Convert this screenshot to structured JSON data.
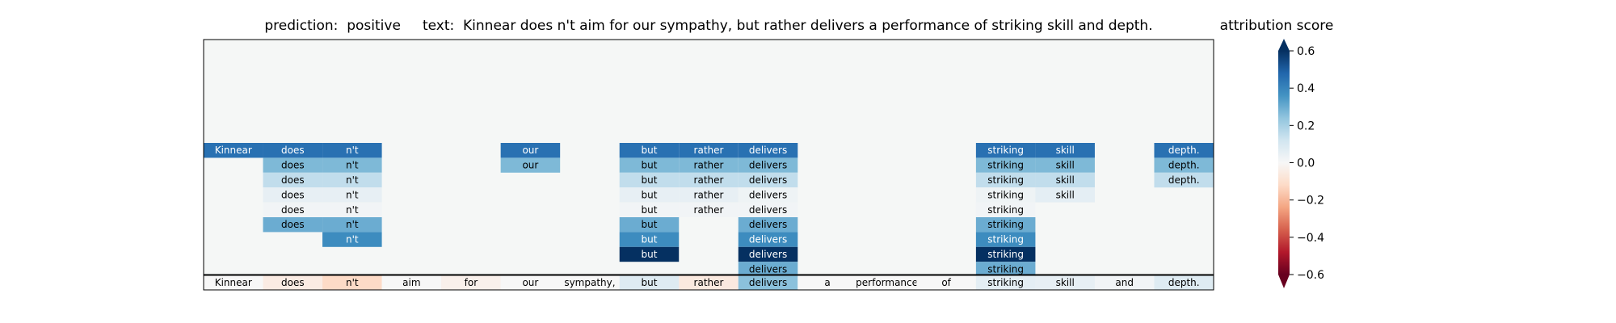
{
  "title": {
    "prediction_text": "prediction:  positive",
    "text_text": "text:  Kinnear does n't aim for our sympathy, but rather delivers a performance of striking skill and depth."
  },
  "colorbar": {
    "title": "attribution score",
    "ticks": [
      "0.6",
      "0.4",
      "0.2",
      "0.0",
      "−0.2",
      "−0.4",
      "−0.6"
    ],
    "tick_values": [
      0.6,
      0.4,
      0.2,
      0.0,
      -0.2,
      -0.4,
      -0.6
    ],
    "range": [
      -0.6,
      0.6
    ],
    "colormap": "RdBu"
  },
  "chart_data": {
    "type": "heatmap",
    "tokens": [
      "Kinnear",
      "does",
      "n't",
      "aim",
      "for",
      "our",
      "sympathy,",
      "but",
      "rather",
      "delivers",
      "a",
      "performance",
      "of",
      "striking",
      "skill",
      "and",
      "depth."
    ],
    "bottom_row_scores": [
      0.0,
      -0.05,
      -0.12,
      0.0,
      -0.03,
      0.0,
      0.0,
      0.08,
      -0.06,
      0.25,
      0.0,
      0.0,
      0.0,
      0.06,
      0.05,
      0.02,
      0.08
    ],
    "hierarchy_rows": [
      {
        "segments": [
          {
            "start": 0,
            "end": 0,
            "score": 0.45
          },
          {
            "start": 1,
            "end": 1,
            "score": 0.45
          },
          {
            "start": 2,
            "end": 2,
            "score": 0.45
          },
          {
            "start": 5,
            "end": 5,
            "score": 0.45
          },
          {
            "start": 7,
            "end": 7,
            "score": 0.45
          },
          {
            "start": 8,
            "end": 8,
            "score": 0.45
          },
          {
            "start": 9,
            "end": 9,
            "score": 0.45
          },
          {
            "start": 13,
            "end": 13,
            "score": 0.45
          },
          {
            "start": 14,
            "end": 14,
            "score": 0.45
          },
          {
            "start": 16,
            "end": 16,
            "score": 0.45
          }
        ]
      },
      {
        "segments": [
          {
            "start": 1,
            "end": 1,
            "score": 0.27
          },
          {
            "start": 2,
            "end": 2,
            "score": 0.27
          },
          {
            "start": 5,
            "end": 5,
            "score": 0.27
          },
          {
            "start": 7,
            "end": 7,
            "score": 0.27
          },
          {
            "start": 8,
            "end": 8,
            "score": 0.27
          },
          {
            "start": 9,
            "end": 9,
            "score": 0.27
          },
          {
            "start": 13,
            "end": 13,
            "score": 0.27
          },
          {
            "start": 14,
            "end": 14,
            "score": 0.27
          },
          {
            "start": 16,
            "end": 16,
            "score": 0.27
          }
        ]
      },
      {
        "segments": [
          {
            "start": 1,
            "end": 1,
            "score": 0.15
          },
          {
            "start": 2,
            "end": 2,
            "score": 0.15
          },
          {
            "start": 7,
            "end": 7,
            "score": 0.15
          },
          {
            "start": 8,
            "end": 8,
            "score": 0.15
          },
          {
            "start": 9,
            "end": 9,
            "score": 0.15
          },
          {
            "start": 13,
            "end": 13,
            "score": 0.15
          },
          {
            "start": 14,
            "end": 14,
            "score": 0.15
          },
          {
            "start": 16,
            "end": 16,
            "score": 0.15
          }
        ]
      },
      {
        "segments": [
          {
            "start": 1,
            "end": 1,
            "score": 0.05
          },
          {
            "start": 2,
            "end": 2,
            "score": 0.05
          },
          {
            "start": 7,
            "end": 7,
            "score": 0.05
          },
          {
            "start": 8,
            "end": 8,
            "score": 0.05
          },
          {
            "start": 9,
            "end": 9,
            "score": 0.03
          },
          {
            "start": 13,
            "end": 13,
            "score": 0.03
          },
          {
            "start": 14,
            "end": 14,
            "score": 0.06
          }
        ]
      },
      {
        "segments": [
          {
            "start": 1,
            "end": 1,
            "score": 0.02
          },
          {
            "start": 2,
            "end": 2,
            "score": 0.02
          },
          {
            "start": 7,
            "end": 7,
            "score": 0.02
          },
          {
            "start": 8,
            "end": 8,
            "score": 0.02
          },
          {
            "start": 9,
            "end": 9,
            "score": 0.02
          },
          {
            "start": 13,
            "end": 13,
            "score": 0.02
          }
        ]
      },
      {
        "segments": [
          {
            "start": 1,
            "end": 1,
            "score": 0.3
          },
          {
            "start": 2,
            "end": 2,
            "score": 0.3
          },
          {
            "start": 7,
            "end": 7,
            "score": 0.3
          },
          {
            "start": 9,
            "end": 9,
            "score": 0.3
          },
          {
            "start": 13,
            "end": 13,
            "score": 0.3
          }
        ]
      },
      {
        "segments": [
          {
            "start": 2,
            "end": 2,
            "score": 0.38
          },
          {
            "start": 7,
            "end": 7,
            "score": 0.38
          },
          {
            "start": 9,
            "end": 9,
            "score": 0.38
          },
          {
            "start": 13,
            "end": 13,
            "score": 0.38
          }
        ]
      },
      {
        "segments": [
          {
            "start": 7,
            "end": 7,
            "score": 0.62
          },
          {
            "start": 9,
            "end": 9,
            "score": 0.62
          },
          {
            "start": 13,
            "end": 13,
            "score": 0.62
          }
        ]
      },
      {
        "segments": [
          {
            "start": 9,
            "end": 9,
            "score": 0.3
          },
          {
            "start": 13,
            "end": 13,
            "score": 0.3
          }
        ]
      }
    ]
  }
}
